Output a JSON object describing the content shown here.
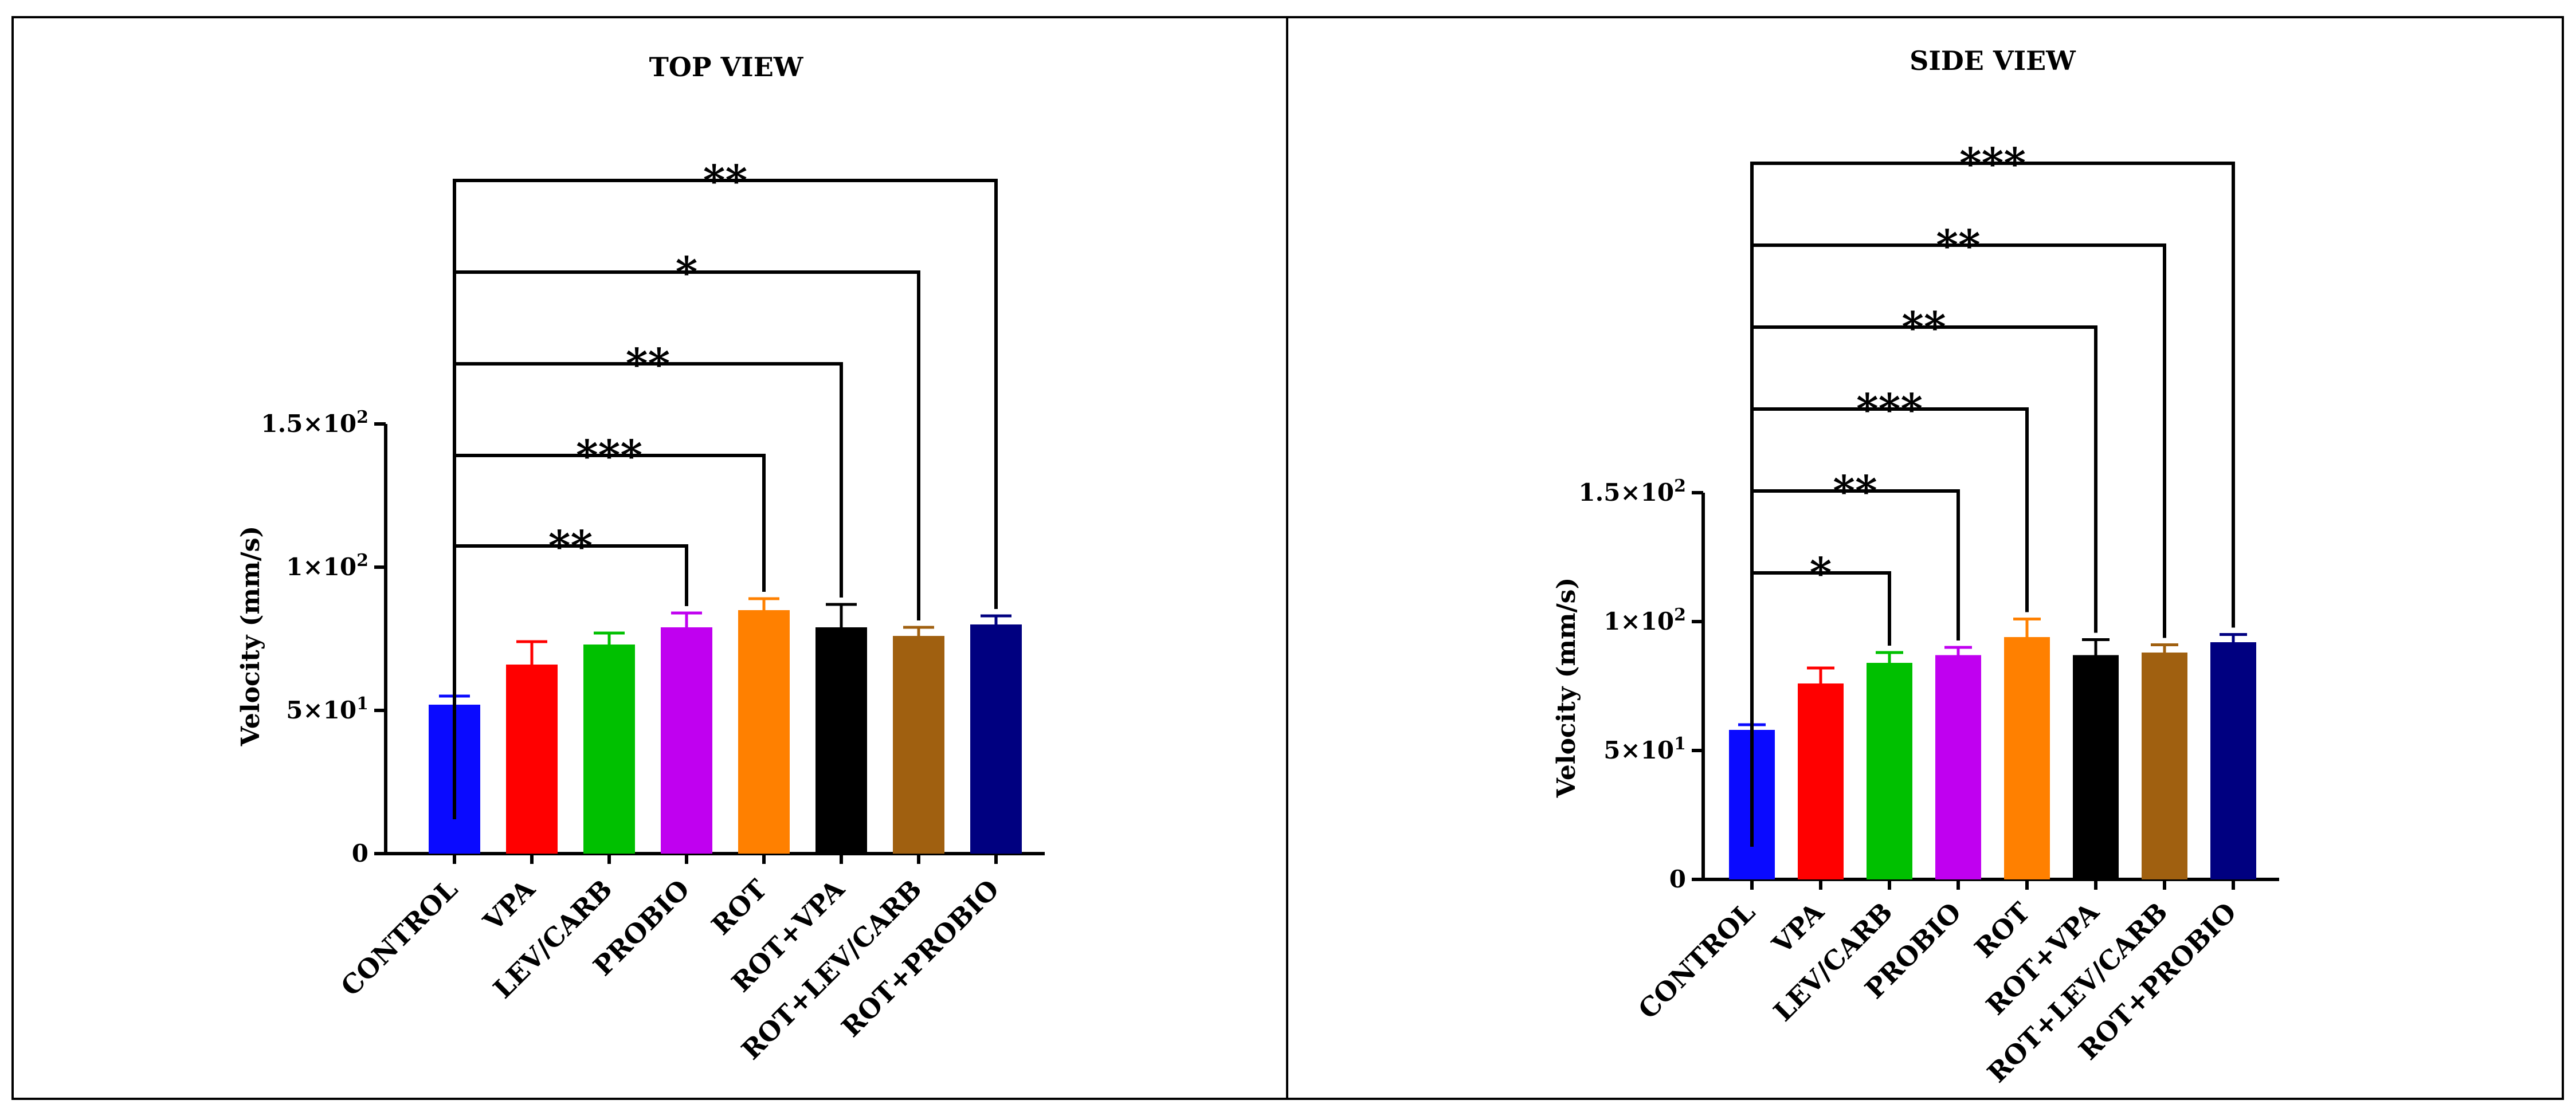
{
  "chart_data": [
    {
      "type": "bar",
      "title": "TOP VIEW",
      "xlabel": "",
      "ylabel": "Velocity (mm/s)",
      "ylim": [
        0,
        150
      ],
      "yticks": [
        0,
        50,
        100,
        150
      ],
      "ytick_labels": [
        "0",
        "5×10¹",
        "1×10²",
        "1.5×10²"
      ],
      "categories": [
        "CONTROL",
        "VPA",
        "LEV/CARB",
        "PROBIO",
        "ROT",
        "ROT+VPA",
        "ROT+LEV/CARB",
        "ROT+PROBIO"
      ],
      "values": [
        52,
        66,
        73,
        79,
        85,
        79,
        76,
        80
      ],
      "errors": [
        3,
        8,
        4,
        5,
        4,
        8,
        3,
        3
      ],
      "colors": [
        "#0a0aff",
        "#ff0000",
        "#00c000",
        "#c000f0",
        "#ff8000",
        "#000000",
        "#a06010",
        "#000080"
      ],
      "significance": [
        {
          "from": 0,
          "to": 3,
          "label": "**"
        },
        {
          "from": 0,
          "to": 4,
          "label": "***"
        },
        {
          "from": 0,
          "to": 5,
          "label": "**"
        },
        {
          "from": 0,
          "to": 6,
          "label": "*"
        },
        {
          "from": 0,
          "to": 7,
          "label": "**"
        }
      ]
    },
    {
      "type": "bar",
      "title": "SIDE VIEW",
      "xlabel": "",
      "ylabel": "Velocity (mm/s)",
      "ylim": [
        0,
        150
      ],
      "yticks": [
        0,
        50,
        100,
        150
      ],
      "ytick_labels": [
        "0",
        "5×10¹",
        "1×10²",
        "1.5×10²"
      ],
      "categories": [
        "CONTROL",
        "VPA",
        "LEV/CARB",
        "PROBIO",
        "ROT",
        "ROT+VPA",
        "ROT+LEV/CARB",
        "ROT+PROBIO"
      ],
      "values": [
        58,
        76,
        84,
        87,
        94,
        87,
        88,
        92
      ],
      "errors": [
        2,
        6,
        4,
        3,
        7,
        6,
        3,
        3
      ],
      "colors": [
        "#0a0aff",
        "#ff0000",
        "#00c000",
        "#c000f0",
        "#ff8000",
        "#000000",
        "#a06010",
        "#000080"
      ],
      "significance": [
        {
          "from": 0,
          "to": 2,
          "label": "*"
        },
        {
          "from": 0,
          "to": 3,
          "label": "**"
        },
        {
          "from": 0,
          "to": 4,
          "label": "***"
        },
        {
          "from": 0,
          "to": 5,
          "label": "**"
        },
        {
          "from": 0,
          "to": 6,
          "label": "**"
        },
        {
          "from": 0,
          "to": 7,
          "label": "***"
        }
      ]
    }
  ]
}
